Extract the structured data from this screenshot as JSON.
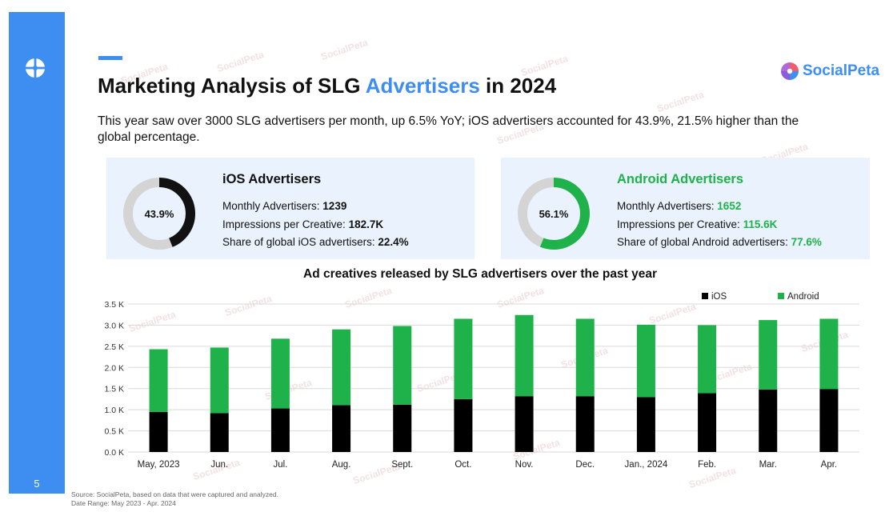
{
  "page_number": "5",
  "title": {
    "part1": "Marketing Analysis of SLG ",
    "highlight": "Advertisers",
    "part2": " in 2024"
  },
  "subtitle": "This year saw over 3000 SLG advertisers per month, up 6.5% YoY; iOS advertisers accounted for 43.9%, 21.5% higher than the global percentage.",
  "brand": {
    "name": "SocialPeta"
  },
  "watermark": "SocialPeta",
  "ios_card": {
    "title": "iOS Advertisers",
    "percent": "43.9%",
    "percent_value": 43.9,
    "color": "#111111",
    "rows": [
      {
        "label": "Monthly Advertisers: ",
        "value": "1239"
      },
      {
        "label": "Impressions per Creative: ",
        "value": "182.7K"
      },
      {
        "label": "Share of global iOS advertisers: ",
        "value": "22.4%"
      }
    ]
  },
  "android_card": {
    "title": "Android Advertisers",
    "percent": "56.1%",
    "percent_value": 56.1,
    "color": "#1fb14a",
    "rows": [
      {
        "label": "Monthly Advertisers: ",
        "value": "1652"
      },
      {
        "label": "Impressions per Creative: ",
        "value": "115.6K"
      },
      {
        "label": "Share of global Android advertisers: ",
        "value": "77.6%"
      }
    ]
  },
  "chart_data": {
    "type": "bar",
    "stacked": true,
    "title": "Ad creatives released by SLG advertisers over the past year",
    "categories": [
      "May, 2023",
      "Jun.",
      "Jul.",
      "Aug.",
      "Sept.",
      "Oct.",
      "Nov.",
      "Dec.",
      "Jan., 2024",
      "Feb.",
      "Mar.",
      "Apr."
    ],
    "series": [
      {
        "name": "iOS",
        "color": "#000000",
        "values": [
          0.95,
          0.92,
          1.03,
          1.11,
          1.12,
          1.25,
          1.32,
          1.32,
          1.3,
          1.39,
          1.48,
          1.49
        ]
      },
      {
        "name": "Android",
        "color": "#1fb14a",
        "values": [
          1.48,
          1.55,
          1.65,
          1.79,
          1.86,
          1.9,
          1.92,
          1.83,
          1.71,
          1.61,
          1.64,
          1.66
        ]
      }
    ],
    "yticks": [
      "0.0 K",
      "0.5 K",
      "1.0 K",
      "1.5 K",
      "2.0 K",
      "2.5 K",
      "3.0 K",
      "3.5 K"
    ],
    "ylim": [
      0,
      3.5
    ],
    "legend_position": "top-right",
    "grid": true
  },
  "footer": {
    "source": "Source: SocialPeta, based on data that were captured and analyzed.",
    "range": "Date Range: May 2023 - Apr. 2024"
  }
}
